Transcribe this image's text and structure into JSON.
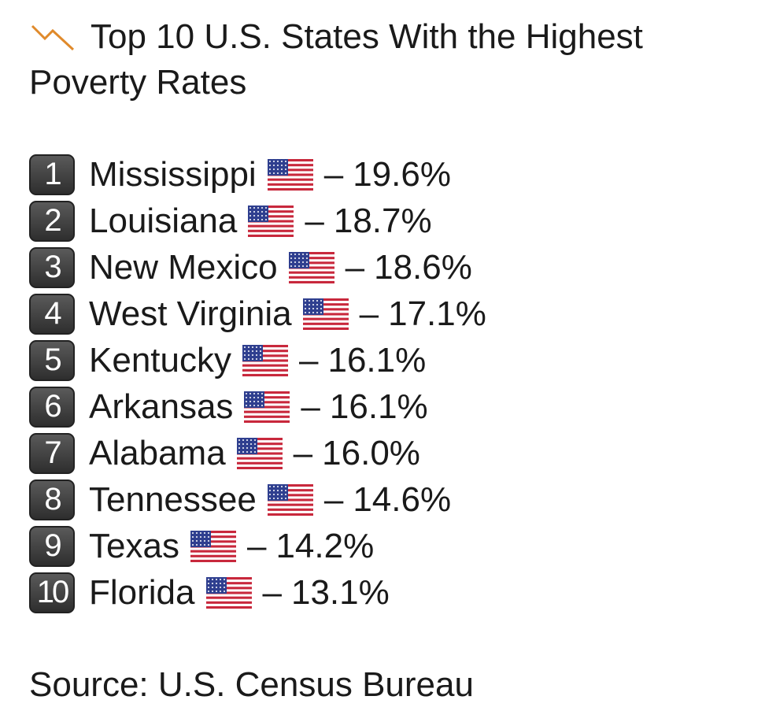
{
  "header": {
    "title_line1": "Top 10 U.S. States With the Highest",
    "title_line2": "Poverty Rates"
  },
  "separator": "–",
  "items": [
    {
      "rank": "1",
      "name": "Mississippi",
      "value": "19.6%"
    },
    {
      "rank": "2",
      "name": "Louisiana",
      "value": "18.7%"
    },
    {
      "rank": "3",
      "name": "New Mexico",
      "value": "18.6%"
    },
    {
      "rank": "4",
      "name": "West Virginia",
      "value": "17.1%"
    },
    {
      "rank": "5",
      "name": "Kentucky",
      "value": "16.1%"
    },
    {
      "rank": "6",
      "name": "Arkansas",
      "value": "16.1%"
    },
    {
      "rank": "7",
      "name": "Alabama",
      "value": "16.0%"
    },
    {
      "rank": "8",
      "name": "Tennessee",
      "value": "14.6%"
    },
    {
      "rank": "9",
      "name": "Texas",
      "value": "14.2%"
    },
    {
      "rank": "10",
      "name": "Florida",
      "value": "13.1%"
    }
  ],
  "source": "Source: U.S. Census Bureau"
}
